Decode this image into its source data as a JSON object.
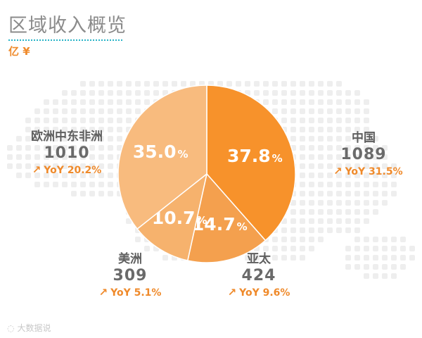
{
  "header": {
    "title": "区域收入概览",
    "unit": "亿 ¥"
  },
  "chart_data": {
    "type": "pie",
    "title": "区域收入概览",
    "unit": "亿 ¥",
    "slices": [
      {
        "region": "中国",
        "value": 1089,
        "percent": 37.8,
        "pct_label": "37.8",
        "yoy": "YoY 31.5%",
        "color": "#f7922b",
        "label_color": "#ffffff"
      },
      {
        "region": "亚太",
        "value": 424,
        "percent": 14.7,
        "pct_label": "14.7",
        "yoy": "YoY 9.6%",
        "color": "#f4a04e",
        "label_color": "#ffffff"
      },
      {
        "region": "美洲",
        "value": 309,
        "percent": 10.7,
        "pct_label": "10.7",
        "yoy": "YoY 5.1%",
        "color": "#f6b26d",
        "label_color": "#ffffff"
      },
      {
        "region": "欧洲中东非洲",
        "value": 1010,
        "percent": 35.0,
        "pct_label": "35.0",
        "yoy": "YoY 20.2%",
        "color": "#f8bb7e",
        "label_color": "#ffffff"
      }
    ],
    "pct_suffix": "%"
  },
  "regions": {
    "china": {
      "name": "中国",
      "value": "1089",
      "yoy": "YoY 31.5%"
    },
    "apac": {
      "name": "亚太",
      "value": "424",
      "yoy": "YoY 9.6%"
    },
    "americas": {
      "name": "美洲",
      "value": "309",
      "yoy": "YoY 5.1%"
    },
    "emea": {
      "name": "欧洲中东非洲",
      "value": "1010",
      "yoy": "YoY 20.2%"
    }
  },
  "watermark": {
    "text": "大数据说"
  },
  "colors": {
    "accent": "#ef8a2b",
    "rule": "#26b3c7",
    "title": "#8b8b8b"
  }
}
